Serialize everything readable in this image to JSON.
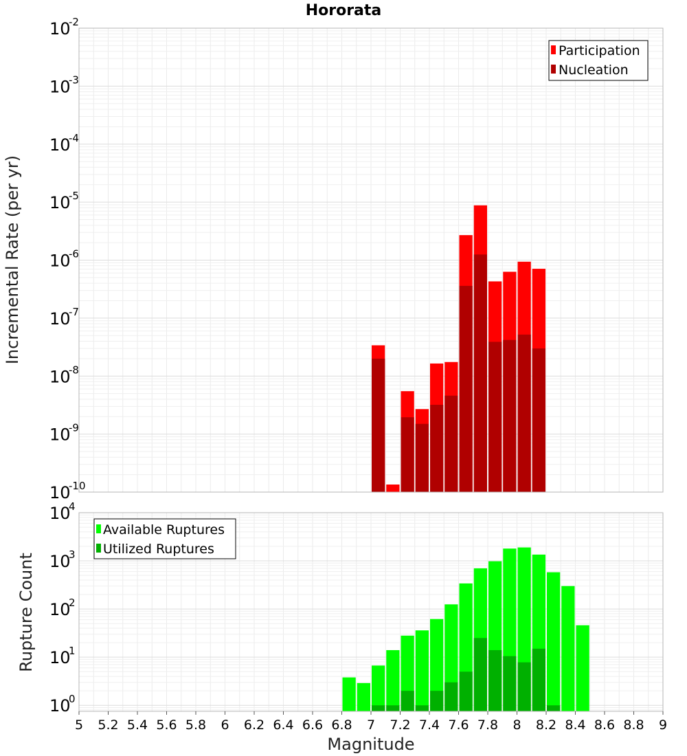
{
  "title": "Hororata",
  "xlabel": "Magnitude",
  "x_ticks": [
    "5",
    "5.2",
    "5.4",
    "5.6",
    "5.8",
    "6",
    "6.2",
    "6.4",
    "6.6",
    "6.8",
    "7",
    "7.2",
    "7.4",
    "7.6",
    "7.8",
    "8",
    "8.2",
    "8.4",
    "8.6",
    "8.8",
    "9"
  ],
  "chart_data": [
    {
      "type": "bar",
      "title": "Hororata",
      "xlabel": "Magnitude",
      "ylabel": "Incremental Rate (per yr)",
      "xlim": [
        5,
        9
      ],
      "ylim": [
        1e-10,
        0.01
      ],
      "yscale": "log",
      "y_tick_exponents": [
        "-10",
        "-9",
        "-8",
        "-7",
        "-6",
        "-5",
        "-4",
        "-3",
        "-2"
      ],
      "grid": true,
      "legend_position": "top-right",
      "x": [
        7.05,
        7.15,
        7.25,
        7.35,
        7.45,
        7.55,
        7.65,
        7.75,
        7.85,
        7.95,
        8.05,
        8.15
      ],
      "series": [
        {
          "name": "Participation",
          "color": "#ff0000",
          "values": [
            3.4e-08,
            1.35e-10,
            5.5e-09,
            2.7e-09,
            1.65e-08,
            1.75e-08,
            2.7e-06,
            8.8e-06,
            4.3e-07,
            6.3e-07,
            9.4e-07,
            7.1e-07
          ]
        },
        {
          "name": "Nucleation",
          "color": "#b00000",
          "values": [
            2e-08,
            null,
            1.95e-09,
            1.5e-09,
            3.2e-09,
            4.6e-09,
            3.6e-07,
            1.25e-06,
            3.9e-08,
            4.2e-08,
            5.2e-08,
            3e-08
          ]
        }
      ]
    },
    {
      "type": "bar",
      "ylabel": "Rupture Count",
      "xlabel": "Magnitude",
      "xlim": [
        5,
        9
      ],
      "ylim": [
        0.75,
        10000
      ],
      "yscale": "log",
      "y_tick_exponents": [
        "0",
        "1",
        "2",
        "3",
        "4"
      ],
      "grid": true,
      "legend_position": "top-left",
      "x": [
        6.85,
        6.95,
        7.05,
        7.15,
        7.25,
        7.35,
        7.45,
        7.55,
        7.65,
        7.75,
        7.85,
        7.95,
        8.05,
        8.15,
        8.25,
        8.35,
        8.45
      ],
      "series": [
        {
          "name": "Available Ruptures",
          "color": "#00ff00",
          "values": [
            3.8,
            2.9,
            6.7,
            14,
            28,
            36,
            62,
            125,
            340,
            700,
            980,
            1800,
            1900,
            1350,
            580,
            300,
            46
          ]
        },
        {
          "name": "Utilized Ruptures",
          "color": "#00b000",
          "values": [
            null,
            null,
            1,
            1,
            2,
            1,
            2,
            3,
            5,
            25,
            14,
            10.5,
            7.8,
            15,
            1,
            null,
            null
          ]
        }
      ]
    }
  ]
}
